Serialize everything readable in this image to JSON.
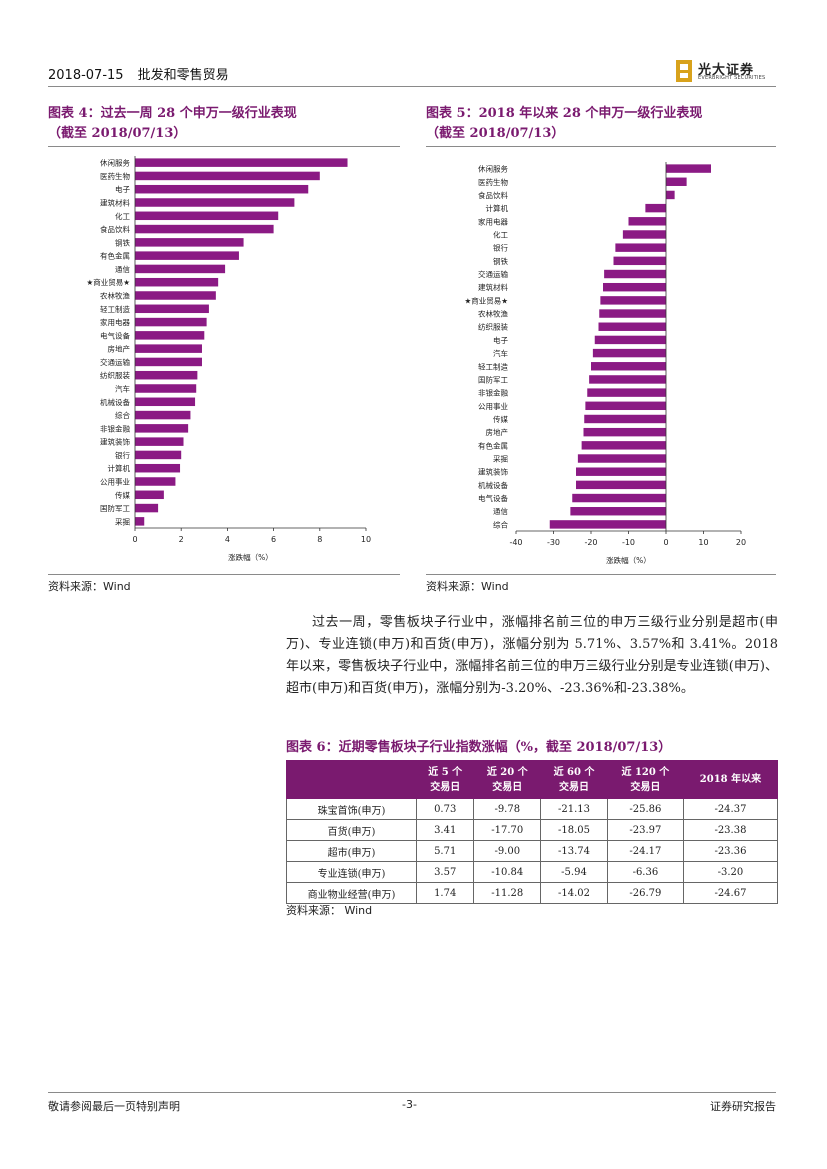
{
  "header": {
    "date": "2018-07-15",
    "section": "批发和零售贸易",
    "logo_cn": "光大证券",
    "logo_en": "EVERBRIGHT SECURITIES"
  },
  "figure4": {
    "title_line1": "图表 4：过去一周 28 个申万一级行业表现",
    "title_line2": "（截至 2018/07/13）",
    "source": "资料来源：Wind"
  },
  "figure5": {
    "title_line1": "图表 5：2018 年以来 28 个申万一级行业表现",
    "title_line2": "（截至 2018/07/13）",
    "source": "资料来源：Wind"
  },
  "paragraph": "过去一周，零售板块子行业中，涨幅排名前三位的申万三级行业分别是超市(申万)、专业连锁(申万)和百货(申万)，涨幅分别为 5.71%、3.57%和 3.41%。2018 年以来，零售板块子行业中，涨幅排名前三位的申万三级行业分别是专业连锁(申万)、超市(申万)和百货(申万)，涨幅分别为-3.20%、-23.36%和-23.38%。",
  "table": {
    "title": "图表 6：近期零售板块子行业指数涨幅（%，截至 2018/07/13）",
    "headers": [
      {
        "l1": "",
        "l2": ""
      },
      {
        "l1": "近 5 个",
        "l2": "交易日"
      },
      {
        "l1": "近 20 个",
        "l2": "交易日"
      },
      {
        "l1": "近 60 个",
        "l2": "交易日"
      },
      {
        "l1": "近 120 个",
        "l2": "交易日"
      },
      {
        "l1": "2018 年以来",
        "l2": ""
      }
    ],
    "rows": [
      [
        "珠宝首饰(申万)",
        "0.73",
        "-9.78",
        "-21.13",
        "-25.86",
        "-24.37"
      ],
      [
        "百货(申万)",
        "3.41",
        "-17.70",
        "-18.05",
        "-23.97",
        "-23.38"
      ],
      [
        "超市(申万)",
        "5.71",
        "-9.00",
        "-13.74",
        "-24.17",
        "-23.36"
      ],
      [
        "专业连锁(申万)",
        "3.57",
        "-10.84",
        "-5.94",
        "-6.36",
        "-3.20"
      ],
      [
        "商业物业经营(申万)",
        "1.74",
        "-11.28",
        "-14.02",
        "-26.79",
        "-24.67"
      ]
    ],
    "source": "资料来源：   Wind"
  },
  "footer": {
    "left": "敬请参阅最后一页特别声明",
    "center": "-3-",
    "right": "证券研究报告"
  },
  "colors": {
    "accent": "#7a1a6f",
    "bar": "#8b1a84",
    "logo_gold": "#d8a21c"
  },
  "chart_data": [
    {
      "type": "bar",
      "orientation": "horizontal",
      "categories": [
        "休闲服务",
        "医药生物",
        "电子",
        "建筑材料",
        "化工",
        "食品饮料",
        "钢铁",
        "有色金属",
        "通信",
        "★商业贸易★",
        "农林牧渔",
        "轻工制造",
        "家用电器",
        "电气设备",
        "房地产",
        "交通运输",
        "纺织服装",
        "汽车",
        "机械设备",
        "综合",
        "非银金融",
        "建筑装饰",
        "银行",
        "计算机",
        "公用事业",
        "传媒",
        "国防军工",
        "采掘"
      ],
      "values": [
        9.2,
        8.0,
        7.5,
        6.9,
        6.2,
        6.0,
        4.7,
        4.5,
        3.9,
        3.6,
        3.5,
        3.2,
        3.1,
        3.0,
        2.9,
        2.9,
        2.7,
        2.65,
        2.6,
        2.4,
        2.3,
        2.1,
        2.0,
        1.95,
        1.75,
        1.25,
        1.0,
        0.4
      ],
      "xlim": [
        0,
        10
      ],
      "xticks": [
        "0",
        "2",
        "4",
        "6",
        "8",
        "10"
      ],
      "xlabel": "涨跌幅（%）",
      "ylabel": "",
      "grid": false
    },
    {
      "type": "bar",
      "orientation": "horizontal",
      "categories": [
        "休闲服务",
        "医药生物",
        "食品饮料",
        "计算机",
        "家用电器",
        "化工",
        "银行",
        "钢铁",
        "交通运输",
        "建筑材料",
        "★商业贸易★",
        "农林牧渔",
        "纺织服装",
        "电子",
        "汽车",
        "轻工制造",
        "国防军工",
        "非银金融",
        "公用事业",
        "传媒",
        "房地产",
        "有色金属",
        "采掘",
        "建筑装饰",
        "机械设备",
        "电气设备",
        "通信",
        "综合"
      ],
      "values": [
        12.0,
        5.5,
        2.3,
        -5.5,
        -10.0,
        -11.5,
        -13.5,
        -14.0,
        -16.5,
        -16.8,
        -17.5,
        -17.8,
        -18.0,
        -19.0,
        -19.5,
        -20.0,
        -20.5,
        -21.0,
        -21.5,
        -21.8,
        -22.0,
        -22.5,
        -23.5,
        -24.0,
        -24.0,
        -25.0,
        -25.5,
        -31.0
      ],
      "xlim": [
        -40,
        20
      ],
      "xticks": [
        "-40",
        "-30",
        "-20",
        "-10",
        "0",
        "10",
        "20"
      ],
      "xlabel": "涨跌幅（%）",
      "ylabel": "",
      "grid": false
    }
  ]
}
